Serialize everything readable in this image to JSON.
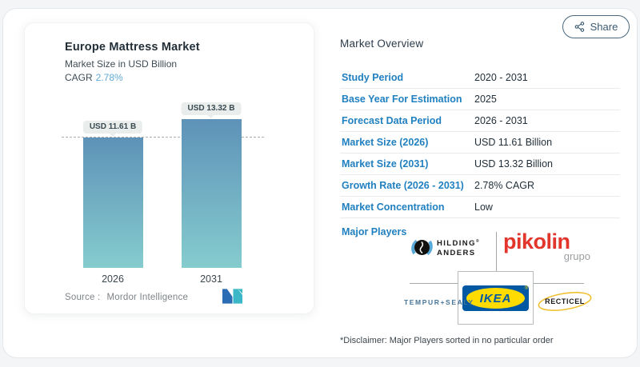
{
  "share_button": {
    "label": "Share",
    "icon": "share-nodes-icon"
  },
  "chart_card": {
    "title": "Europe Mattress Market",
    "subtitle": "Market Size in USD Billion",
    "cagr_label": "CAGR",
    "cagr_value": "2.78%",
    "source_label": "Source :",
    "source_name": "Mordor Intelligence",
    "logo": "mordor-intelligence-logo"
  },
  "chart_data": {
    "type": "bar",
    "categories": [
      "2026",
      "2031"
    ],
    "values": [
      11.61,
      13.32
    ],
    "bar_labels": [
      "USD 11.61 B",
      "USD 13.32 B"
    ],
    "unit": "USD Billion",
    "cagr": "2.78%",
    "reference_line": 11.61,
    "ylim": [
      0,
      14.5
    ],
    "grid": false,
    "legend": false,
    "bar_gradient": [
      "#5e92b8",
      "#85ccce"
    ]
  },
  "overview": {
    "title": "Market Overview",
    "rows": [
      {
        "label": "Study Period",
        "value": "2020 - 2031"
      },
      {
        "label": "Base Year For Estimation",
        "value": "2025"
      },
      {
        "label": "Forecast Data Period",
        "value": "2026 - 2031"
      },
      {
        "label": "Market Size (2026)",
        "value": "USD 11.61 Billion"
      },
      {
        "label": "Market Size (2031)",
        "value": "USD 13.32 Billion"
      },
      {
        "label": "Growth Rate (2026 - 2031)",
        "value": "2.78% CAGR"
      },
      {
        "label": "Market Concentration",
        "value": "Low"
      }
    ],
    "major_players_label": "Major Players",
    "players": {
      "hilding_anders": {
        "line1": "HILDING",
        "line2": "ANDERS",
        "reg": "®"
      },
      "pikolin": {
        "name": "pikolin",
        "sub": "grupo"
      },
      "tempur_sealy": {
        "name": "TEMPUR+SEALY"
      },
      "ikea": {
        "name": "IKEA",
        "reg": "®"
      },
      "recticel": {
        "name": "RECTICEL"
      }
    },
    "disclaimer": "*Disclaimer: Major Players sorted in no particular order"
  },
  "colors": {
    "accent_blue": "#2180c0",
    "cagr_value": "#5fa9d4",
    "bar_top": "#5e92b8",
    "bar_bottom": "#85ccce",
    "ikea_blue": "#0058a3",
    "ikea_yellow": "#ffdb00",
    "pikolin_red": "#e2352c",
    "recticel_yellow": "#f0c030"
  }
}
